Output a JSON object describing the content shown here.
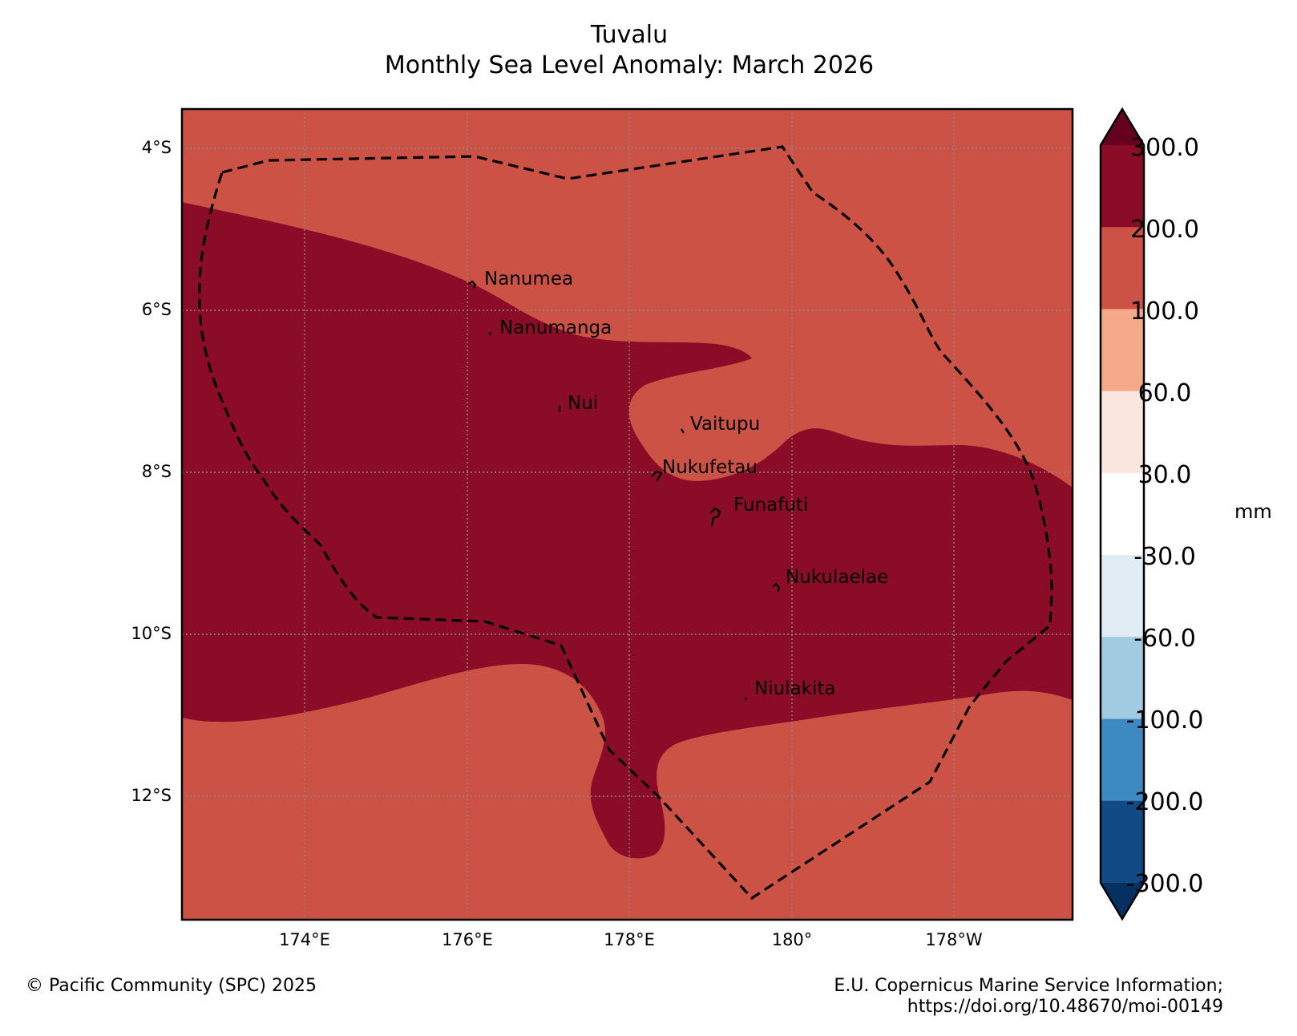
{
  "title": "Tuvalu",
  "subtitle": "Monthly Sea Level Anomaly: March 2026",
  "map": {
    "latitude_labels": [
      "4°S",
      "6°S",
      "8°S",
      "10°S",
      "12°S"
    ],
    "longitude_labels": [
      "174°E",
      "176°E",
      "178°E",
      "180°",
      "178°W"
    ],
    "islands": [
      "Nanumea",
      "Nanumanga",
      "Nui",
      "Vaitupu",
      "Nukufetau",
      "Funafuti",
      "Nukulaelae",
      "Niulakita"
    ],
    "colors": {
      "band_100_200": "#cc5246",
      "band_200_300": "#8a0c26",
      "eez_boundary": "#000000",
      "gridline": "#888888"
    }
  },
  "colorbar": {
    "unit": "mm",
    "tick_labels": [
      "300.0",
      "200.0",
      "100.0",
      "60.0",
      "30.0",
      "-30.0",
      "-60.0",
      "-100.0",
      "-200.0",
      "-300.0"
    ],
    "bands": [
      {
        "range": "above 300",
        "color": "#67001f"
      },
      {
        "range": "200 to 300",
        "color": "#8a0c26"
      },
      {
        "range": "100 to 200",
        "color": "#cc5246"
      },
      {
        "range": "60 to 100",
        "color": "#f4a989"
      },
      {
        "range": "30 to 60",
        "color": "#fae6dc"
      },
      {
        "range": "-30 to 30",
        "color": "#ffffff"
      },
      {
        "range": "-60 to -30",
        "color": "#e2ecf4"
      },
      {
        "range": "-100 to -60",
        "color": "#a0cbe1"
      },
      {
        "range": "-200 to -100",
        "color": "#3d8ac0"
      },
      {
        "range": "-300 to -200",
        "color": "#124a85"
      },
      {
        "range": "below -300",
        "color": "#053061"
      }
    ]
  },
  "credits": {
    "left": "© Pacific Community (SPC) 2025",
    "right_line1": "E.U. Copernicus Marine Service Information;",
    "right_line2": "https://doi.org/10.48670/moi-00149"
  }
}
